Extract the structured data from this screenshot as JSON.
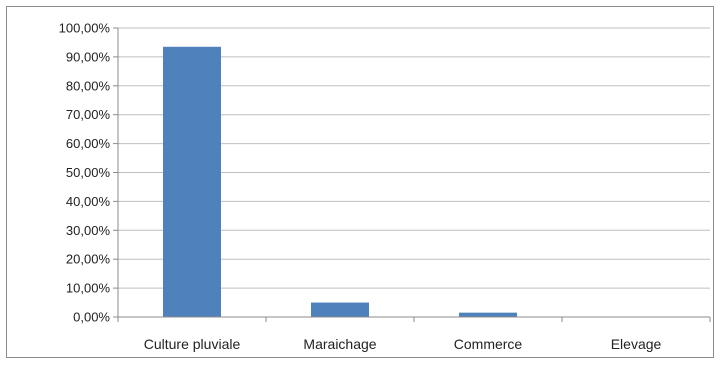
{
  "chart_data": {
    "type": "bar",
    "categories": [
      "Culture pluviale",
      "Maraichage",
      "Commerce",
      "Elevage"
    ],
    "values": [
      93.5,
      5.0,
      1.5,
      0.0
    ],
    "ylim": [
      0,
      100
    ],
    "yticks": [
      "0,00%",
      "10,00%",
      "20,00%",
      "30,00%",
      "40,00%",
      "50,00%",
      "60,00%",
      "70,00%",
      "80,00%",
      "90,00%",
      "100,00%"
    ],
    "ytick_values": [
      0,
      10,
      20,
      30,
      40,
      50,
      60,
      70,
      80,
      90,
      100
    ],
    "grid": true,
    "legend": "none",
    "bar_color": "#4F81BD",
    "grid_color": "#bfbfbf",
    "axis_color": "#8c8c8c"
  }
}
